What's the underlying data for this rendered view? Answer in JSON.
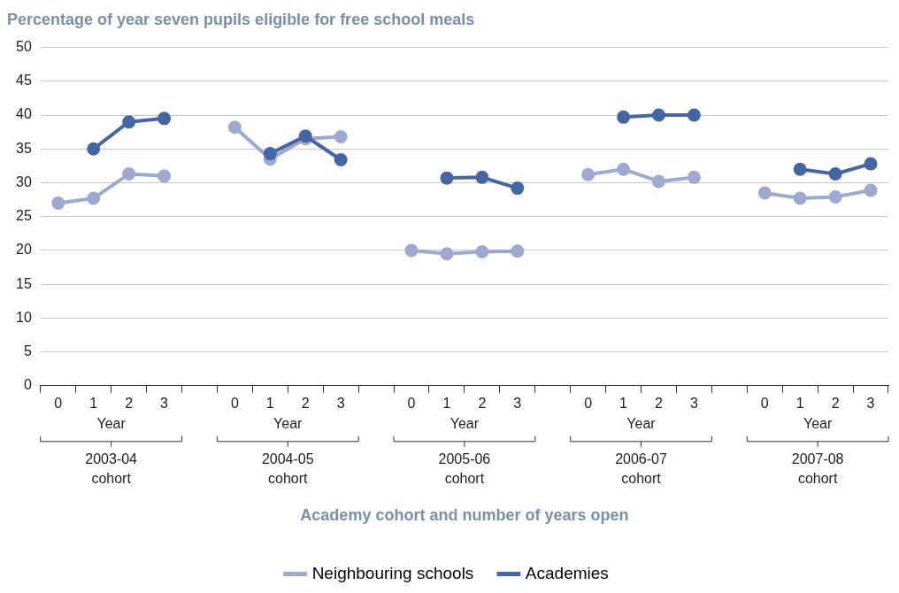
{
  "chart_data": {
    "type": "line",
    "title": "Percentage of year seven pupils eligible for free school meals",
    "categories": [
      "0",
      "1",
      "2",
      "3",
      null,
      "0",
      "1",
      "2",
      "3",
      null,
      "0",
      "1",
      "2",
      "3",
      null,
      "0",
      "1",
      "2",
      "3",
      null,
      "0",
      "1",
      "2",
      "3"
    ],
    "annotations": [
      "Year",
      "2003-04 cohort",
      "Year",
      "2004-05 cohort",
      "Year",
      "2005-06 cohort",
      "Year",
      "2006-07 cohort",
      "Year",
      "2007-08 cohort",
      "Academy cohort and number of years open"
    ],
    "series": [
      {
        "name": "Neighbouring schools",
        "color": "#9fa9d0",
        "values": [
          27.0,
          27.7,
          31.3,
          31.0,
          null,
          38.2,
          33.5,
          36.5,
          36.8,
          null,
          20.0,
          19.5,
          19.8,
          19.9,
          null,
          31.2,
          32.0,
          30.2,
          30.8,
          null,
          28.5,
          27.7,
          27.9,
          28.9
        ]
      },
      {
        "name": "Academies",
        "color": "#4467a3",
        "values": [
          null,
          35.0,
          39.0,
          39.5,
          null,
          null,
          34.3,
          36.9,
          33.4,
          null,
          null,
          30.7,
          30.8,
          29.2,
          null,
          null,
          39.7,
          40.0,
          40.0,
          null,
          null,
          32.0,
          31.3,
          32.8
        ]
      }
    ],
    "ylim": [
      0,
      50
    ],
    "yticks": [
      0,
      5,
      10,
      15,
      20,
      25,
      30,
      35,
      40,
      45,
      50
    ],
    "grid": "y",
    "legend": "bottom",
    "marker": "circle",
    "line_style": "solid"
  }
}
